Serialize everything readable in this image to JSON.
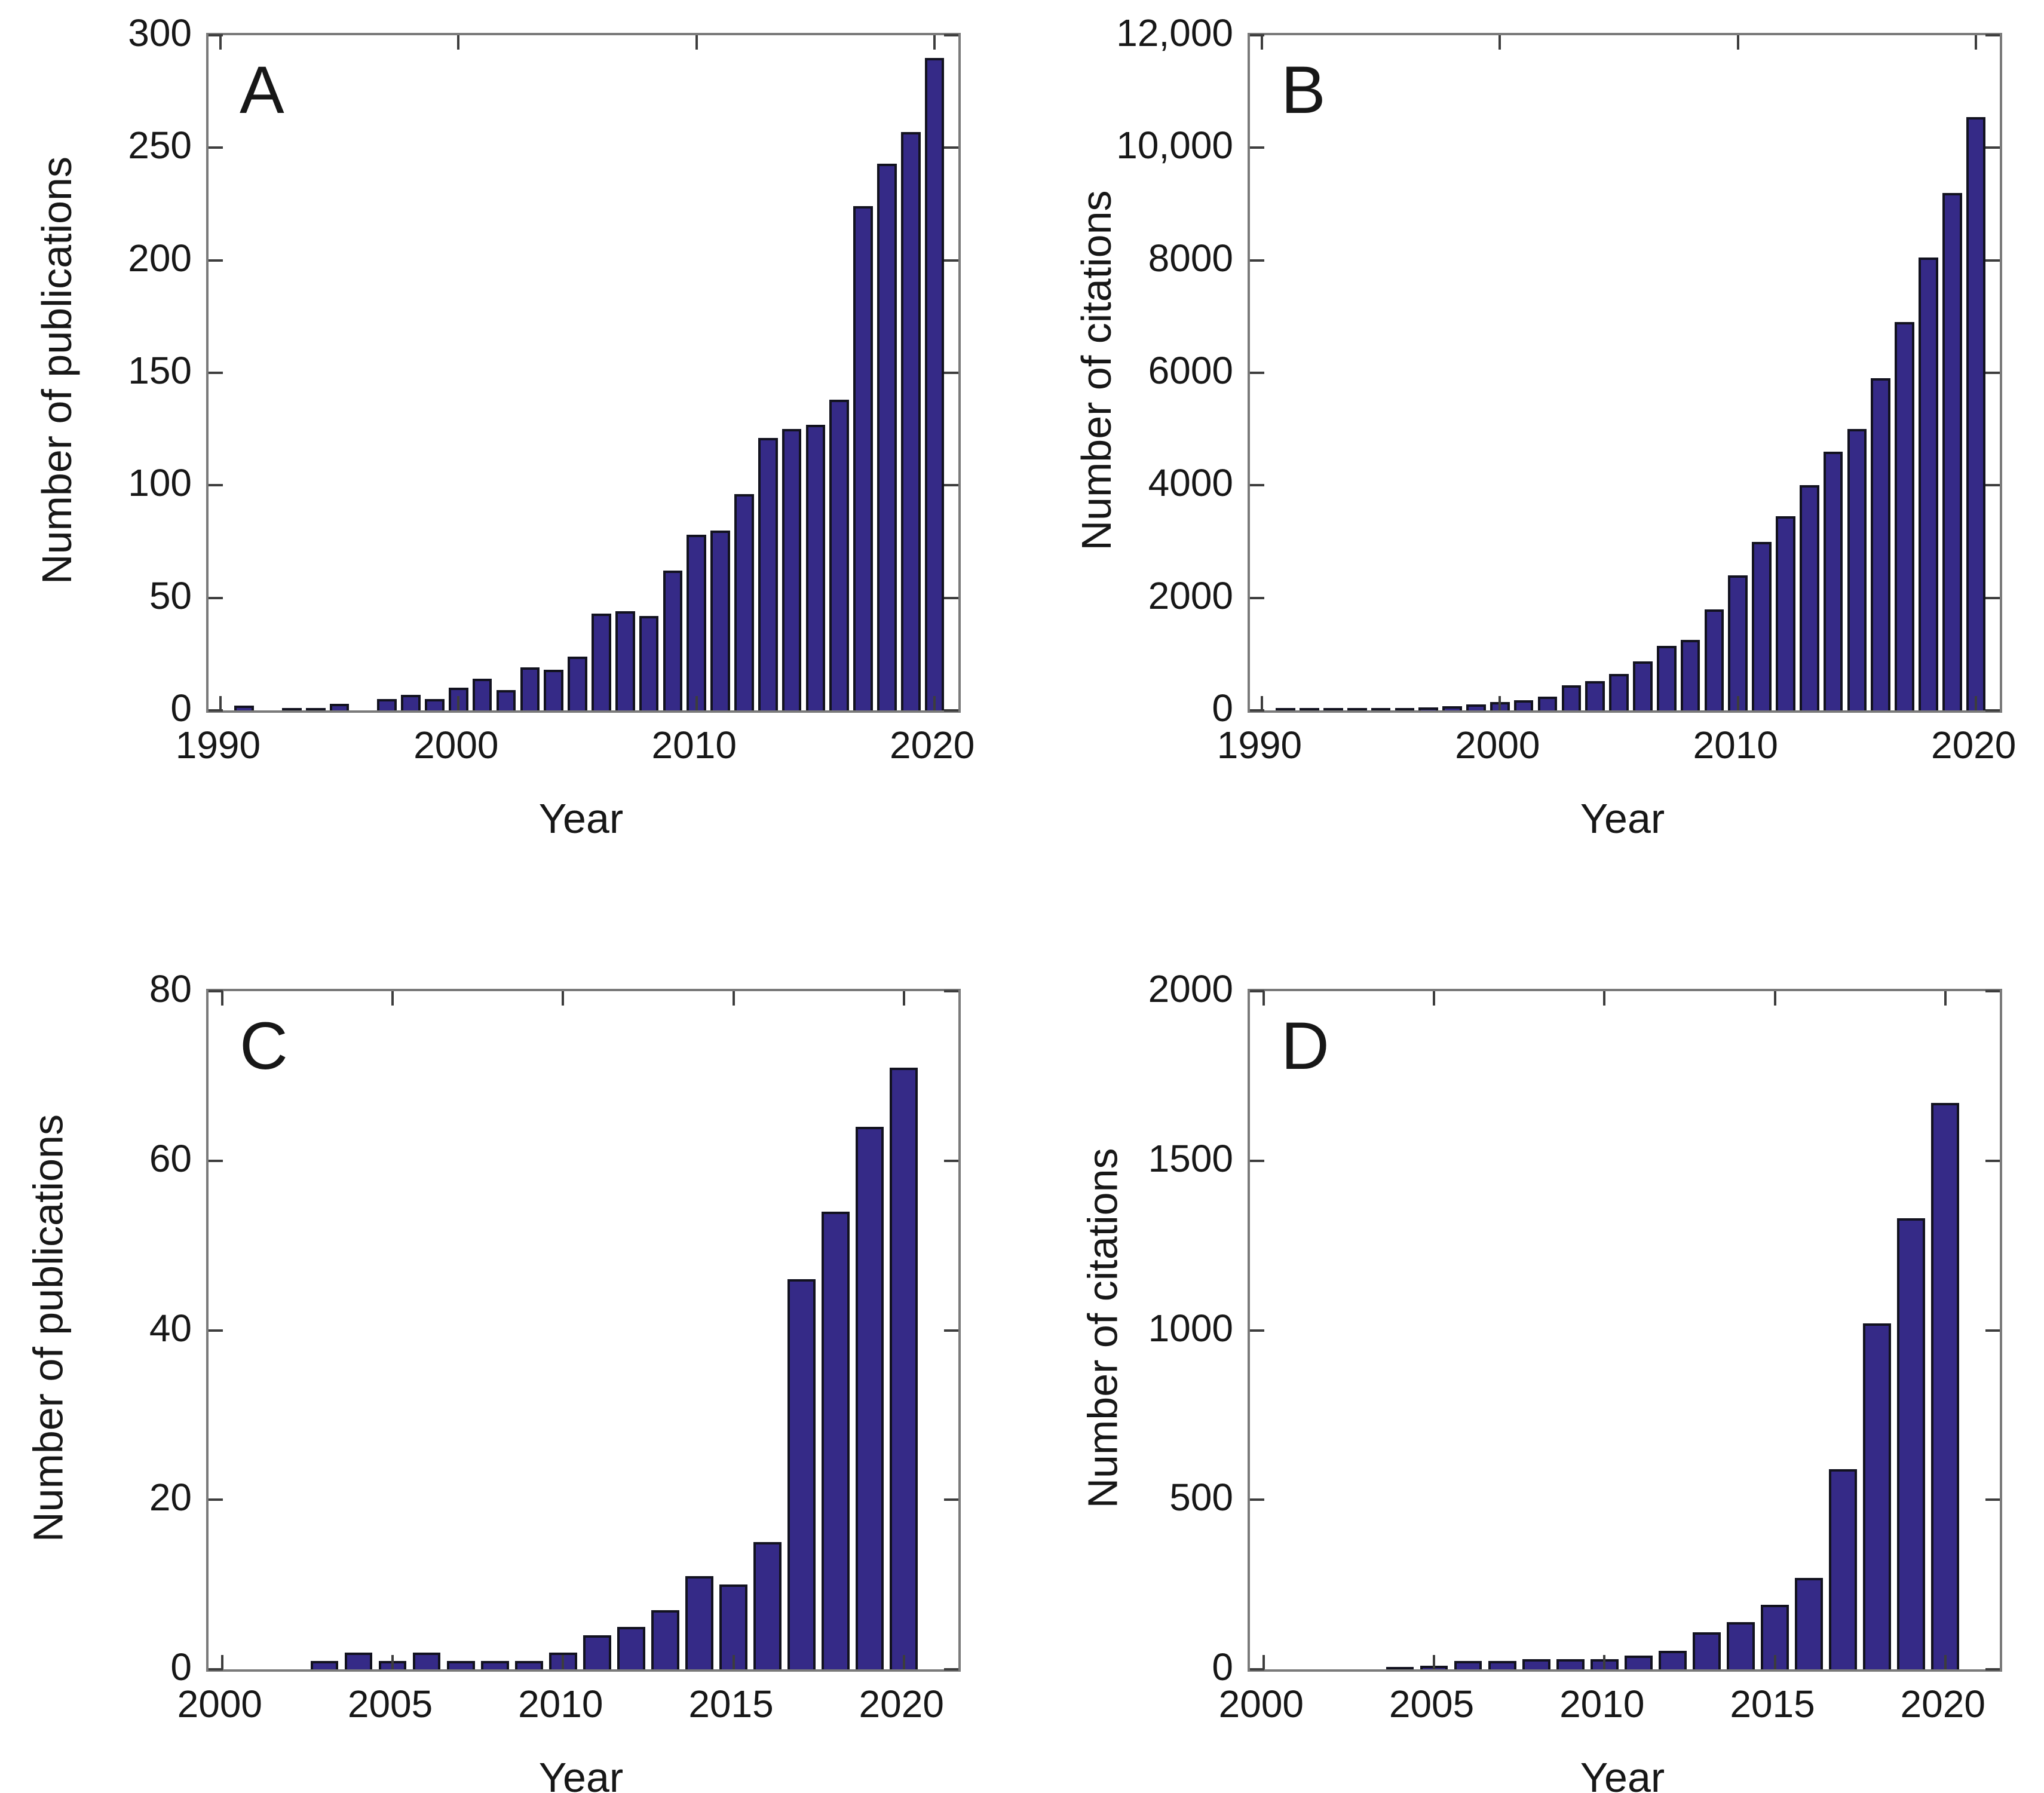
{
  "figure": {
    "background": "#ffffff",
    "bar_fill": "#352a87",
    "bar_edge": "#12121f",
    "frame_color": "#7a7a7a",
    "tick_color": "#3d3d3d",
    "text_color": "#171717"
  },
  "chart_data": [
    {
      "id": "A",
      "type": "bar",
      "panel_label": "A",
      "xlabel": "Year",
      "ylabel": "Number of publications",
      "legend": "none",
      "grid": false,
      "xlim": [
        1989.5,
        2021.0
      ],
      "ylim": [
        0,
        300
      ],
      "xticks": [
        {
          "v": 1990,
          "label": "1990"
        },
        {
          "v": 2000,
          "label": "2000"
        },
        {
          "v": 2010,
          "label": "2010"
        },
        {
          "v": 2020,
          "label": "2020"
        }
      ],
      "yticks": [
        {
          "v": 0,
          "label": "0"
        },
        {
          "v": 50,
          "label": "50"
        },
        {
          "v": 100,
          "label": "100"
        },
        {
          "v": 150,
          "label": "150"
        },
        {
          "v": 200,
          "label": "200"
        },
        {
          "v": 250,
          "label": "250"
        },
        {
          "v": 300,
          "label": "300"
        }
      ],
      "x": [
        1991,
        1992,
        1993,
        1994,
        1995,
        1996,
        1997,
        1998,
        1999,
        2000,
        2001,
        2002,
        2003,
        2004,
        2005,
        2006,
        2007,
        2008,
        2009,
        2010,
        2011,
        2012,
        2013,
        2014,
        2015,
        2016,
        2017,
        2018,
        2019,
        2020
      ],
      "values": [
        2,
        0,
        1,
        1,
        3,
        0,
        5,
        7,
        5,
        10,
        14,
        9,
        19,
        18,
        24,
        43,
        44,
        42,
        62,
        78,
        80,
        96,
        121,
        125,
        127,
        138,
        224,
        243,
        257,
        290
      ]
    },
    {
      "id": "B",
      "type": "bar",
      "panel_label": "B",
      "xlabel": "Year",
      "ylabel": "Number of citations",
      "legend": "none",
      "grid": false,
      "xlim": [
        1989.5,
        2021.0
      ],
      "ylim": [
        0,
        12000
      ],
      "xticks": [
        {
          "v": 1990,
          "label": "1990"
        },
        {
          "v": 2000,
          "label": "2000"
        },
        {
          "v": 2010,
          "label": "2010"
        },
        {
          "v": 2020,
          "label": "2020"
        }
      ],
      "yticks": [
        {
          "v": 0,
          "label": "0"
        },
        {
          "v": 2000,
          "label": "2000"
        },
        {
          "v": 4000,
          "label": "4000"
        },
        {
          "v": 6000,
          "label": "6000"
        },
        {
          "v": 8000,
          "label": "8000"
        },
        {
          "v": 10000,
          "label": "10,000"
        },
        {
          "v": 12000,
          "label": "12,000"
        }
      ],
      "x": [
        1991,
        1992,
        1993,
        1994,
        1995,
        1996,
        1997,
        1998,
        1999,
        2000,
        2001,
        2002,
        2003,
        2004,
        2005,
        2006,
        2007,
        2008,
        2009,
        2010,
        2011,
        2012,
        2013,
        2014,
        2015,
        2016,
        2017,
        2018,
        2019,
        2020
      ],
      "values": [
        3,
        5,
        10,
        20,
        30,
        40,
        55,
        75,
        105,
        145,
        185,
        240,
        450,
        520,
        650,
        870,
        1150,
        1250,
        1800,
        2400,
        3000,
        3450,
        4000,
        4600,
        5000,
        5900,
        6900,
        8050,
        9200,
        10550
      ]
    },
    {
      "id": "C",
      "type": "bar",
      "panel_label": "C",
      "xlabel": "Year",
      "ylabel": "Number of publications",
      "legend": "none",
      "grid": false,
      "xlim": [
        1999.6,
        2021.6
      ],
      "ylim": [
        0,
        80
      ],
      "xticks": [
        {
          "v": 2000,
          "label": "2000"
        },
        {
          "v": 2005,
          "label": "2005"
        },
        {
          "v": 2010,
          "label": "2010"
        },
        {
          "v": 2015,
          "label": "2015"
        },
        {
          "v": 2020,
          "label": "2020"
        }
      ],
      "yticks": [
        {
          "v": 0,
          "label": "0"
        },
        {
          "v": 20,
          "label": "20"
        },
        {
          "v": 40,
          "label": "40"
        },
        {
          "v": 60,
          "label": "60"
        },
        {
          "v": 80,
          "label": "80"
        }
      ],
      "x": [
        2003,
        2004,
        2005,
        2006,
        2007,
        2008,
        2009,
        2010,
        2011,
        2012,
        2013,
        2014,
        2015,
        2016,
        2017,
        2018,
        2019,
        2020
      ],
      "values": [
        1,
        2,
        1,
        2,
        1,
        1,
        1,
        2,
        4,
        5,
        7,
        11,
        10,
        15,
        46,
        54,
        64,
        71
      ]
    },
    {
      "id": "D",
      "type": "bar",
      "panel_label": "D",
      "xlabel": "Year",
      "ylabel": "Number of citations",
      "legend": "none",
      "grid": false,
      "xlim": [
        1999.6,
        2021.6
      ],
      "ylim": [
        0,
        2000
      ],
      "xticks": [
        {
          "v": 2000,
          "label": "2000"
        },
        {
          "v": 2005,
          "label": "2005"
        },
        {
          "v": 2010,
          "label": "2010"
        },
        {
          "v": 2015,
          "label": "2015"
        },
        {
          "v": 2020,
          "label": "2020"
        }
      ],
      "yticks": [
        {
          "v": 0,
          "label": "0"
        },
        {
          "v": 500,
          "label": "500"
        },
        {
          "v": 1000,
          "label": "1000"
        },
        {
          "v": 1500,
          "label": "1500"
        },
        {
          "v": 2000,
          "label": "2000"
        }
      ],
      "x": [
        2004,
        2005,
        2006,
        2007,
        2008,
        2009,
        2010,
        2011,
        2012,
        2013,
        2014,
        2015,
        2016,
        2017,
        2018,
        2019,
        2020
      ],
      "values": [
        3,
        10,
        25,
        25,
        30,
        30,
        30,
        40,
        55,
        110,
        140,
        190,
        270,
        590,
        1020,
        1330,
        1670
      ]
    }
  ]
}
